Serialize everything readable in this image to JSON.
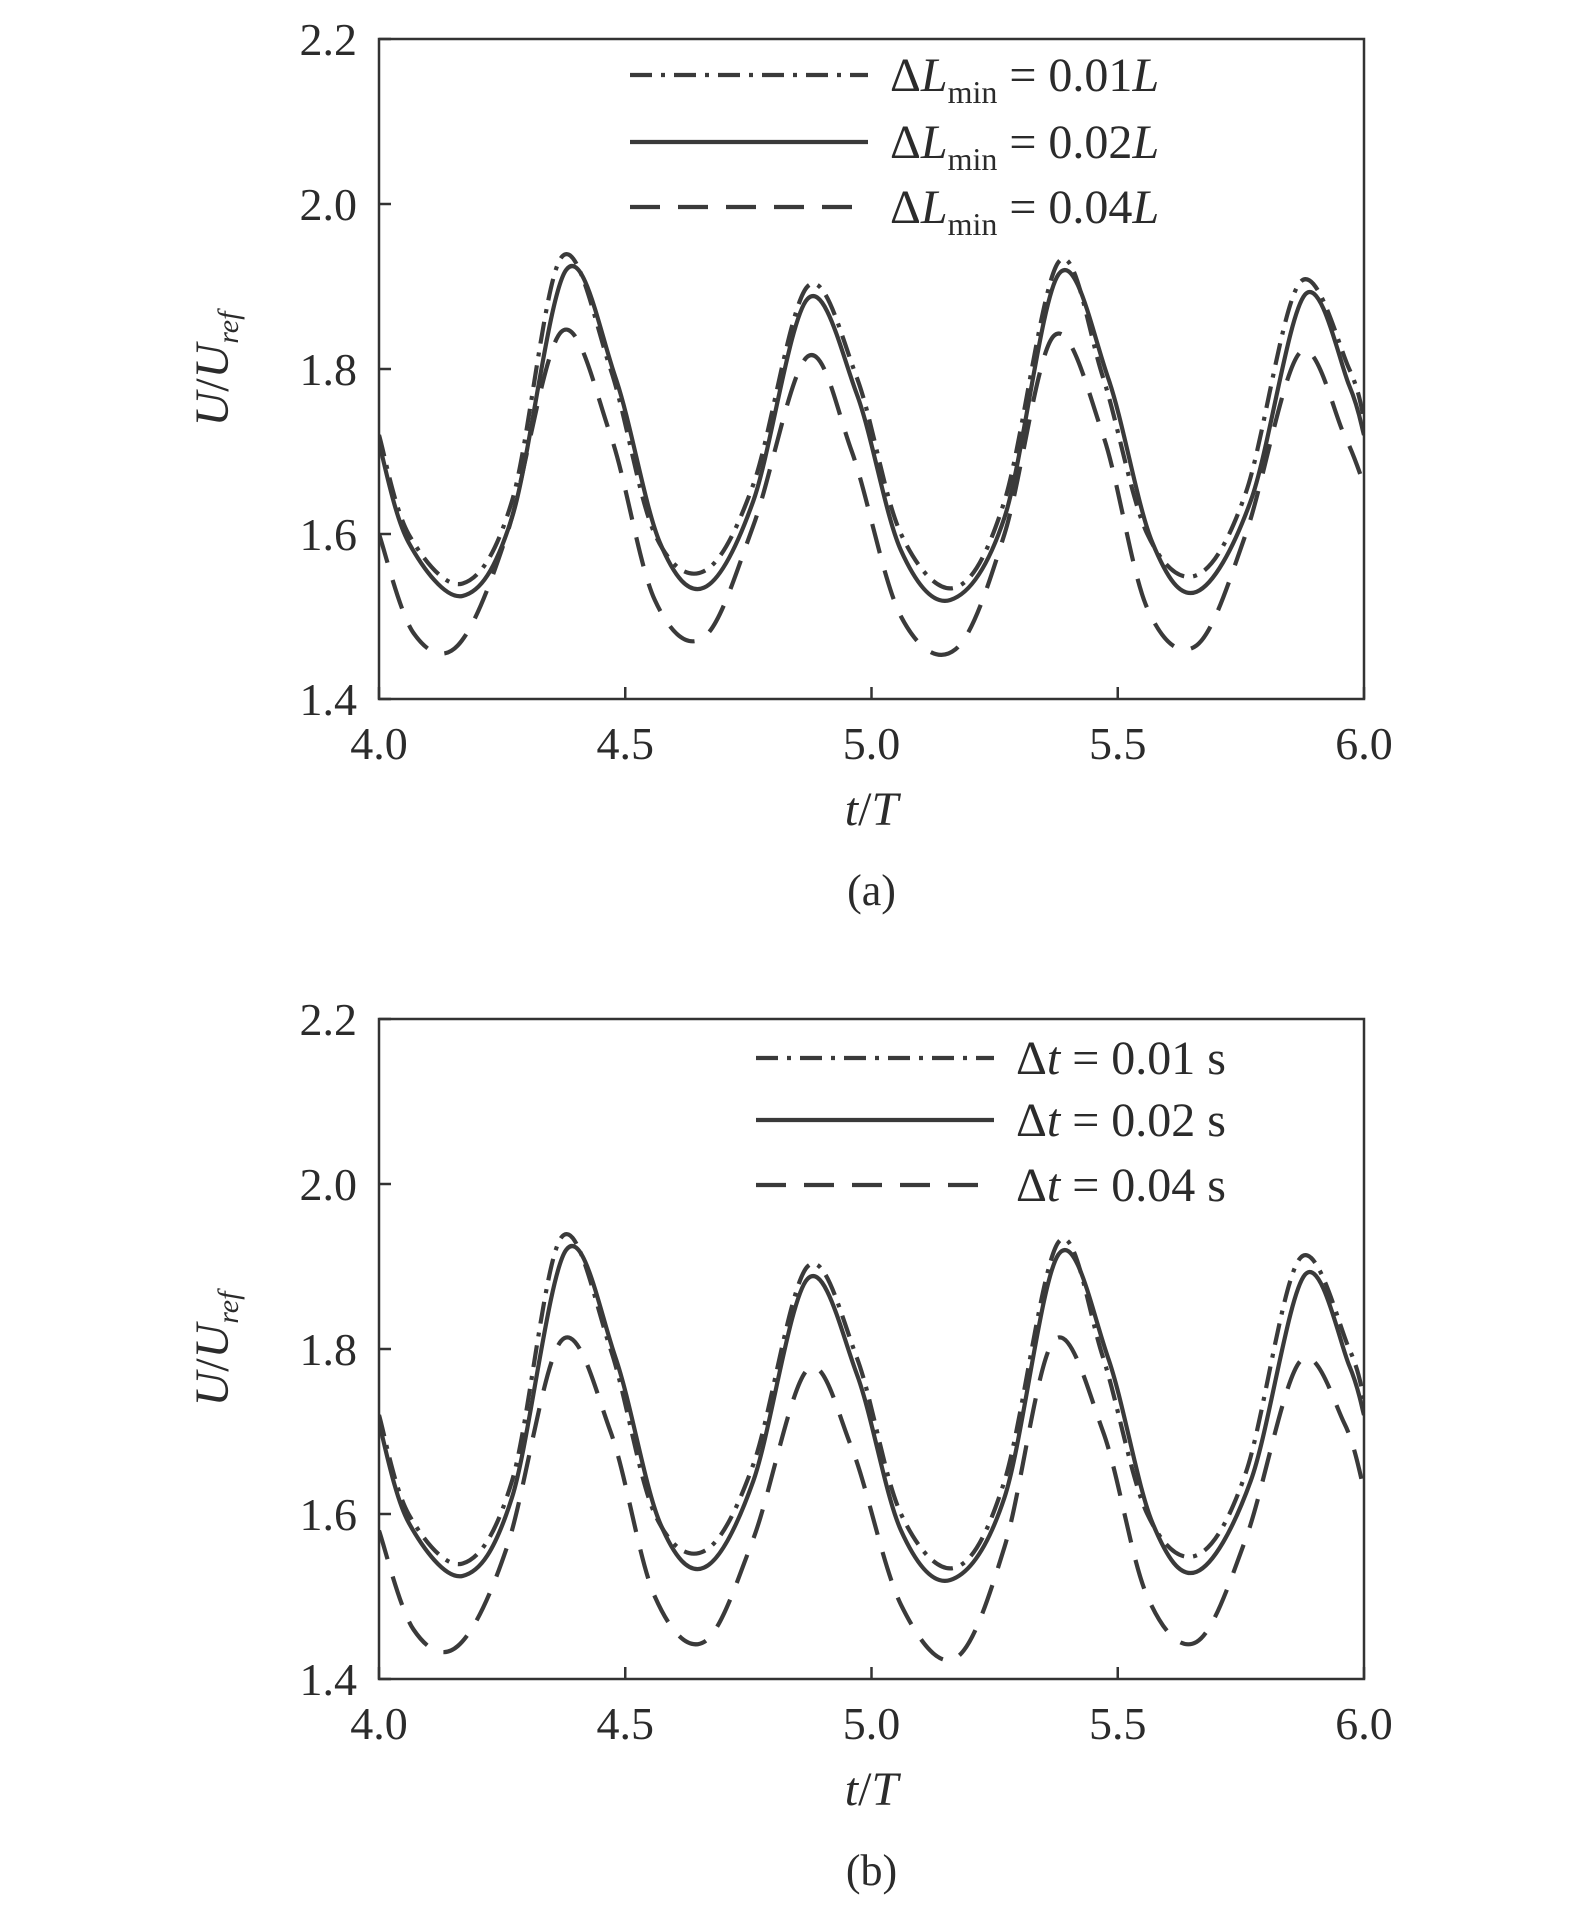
{
  "chart_data": [
    {
      "type": "line",
      "caption": "(a)",
      "xlabel": "t/T",
      "ylabel": "U/U_ref",
      "xlim": [
        4.0,
        6.0
      ],
      "ylim": [
        1.4,
        2.2
      ],
      "xticks": [
        "4.0",
        "4.5",
        "5.0",
        "5.5",
        "6.0"
      ],
      "yticks": [
        "1.4",
        "1.6",
        "1.8",
        "2.0",
        "2.2"
      ],
      "grid": false,
      "legend_position": "top-right",
      "series": [
        {
          "name": "ΔL_min = 0.01L",
          "style": "dashdot",
          "legend": {
            "prefix": "ΔL",
            "sub": "min",
            "value": " = 0.01",
            "unit": "L"
          },
          "x": [
            4.0,
            4.06,
            4.17,
            4.27,
            4.37,
            4.47,
            4.56,
            4.66,
            4.76,
            4.87,
            4.97,
            5.06,
            5.17,
            5.27,
            5.38,
            5.47,
            5.56,
            5.66,
            5.76,
            5.87,
            5.97,
            6.0
          ],
          "y": [
            1.72,
            1.6,
            1.54,
            1.64,
            1.935,
            1.8,
            1.6,
            1.555,
            1.66,
            1.9,
            1.79,
            1.6,
            1.535,
            1.64,
            1.93,
            1.79,
            1.6,
            1.55,
            1.65,
            1.905,
            1.8,
            1.74
          ]
        },
        {
          "name": "ΔL_min = 0.02L",
          "style": "solid",
          "legend": {
            "prefix": "ΔL",
            "sub": "min",
            "value": " = 0.02",
            "unit": "L"
          },
          "x": [
            4.0,
            4.06,
            4.17,
            4.27,
            4.38,
            4.48,
            4.57,
            4.66,
            4.76,
            4.87,
            4.97,
            5.06,
            5.16,
            5.27,
            5.38,
            5.48,
            5.57,
            5.66,
            5.77,
            5.88,
            5.97,
            6.0
          ],
          "y": [
            1.71,
            1.59,
            1.525,
            1.62,
            1.92,
            1.79,
            1.59,
            1.535,
            1.64,
            1.885,
            1.77,
            1.58,
            1.52,
            1.62,
            1.915,
            1.79,
            1.59,
            1.53,
            1.64,
            1.89,
            1.78,
            1.72
          ]
        },
        {
          "name": "ΔL_min = 0.04L",
          "style": "dashed",
          "legend": {
            "prefix": "ΔL",
            "sub": "min",
            "value": " = 0.04",
            "unit": "L"
          },
          "x": [
            4.0,
            4.07,
            4.16,
            4.26,
            4.37,
            4.47,
            4.56,
            4.66,
            4.76,
            4.87,
            4.96,
            5.06,
            5.17,
            5.27,
            5.37,
            5.47,
            5.56,
            5.66,
            5.76,
            5.87,
            5.96,
            6.0
          ],
          "y": [
            1.6,
            1.48,
            1.465,
            1.6,
            1.845,
            1.72,
            1.52,
            1.475,
            1.61,
            1.815,
            1.7,
            1.5,
            1.46,
            1.6,
            1.84,
            1.72,
            1.51,
            1.465,
            1.6,
            1.82,
            1.72,
            1.66
          ]
        }
      ]
    },
    {
      "type": "line",
      "caption": "(b)",
      "xlabel": "t/T",
      "ylabel": "U/U_ref",
      "xlim": [
        4.0,
        6.0
      ],
      "ylim": [
        1.4,
        2.2
      ],
      "xticks": [
        "4.0",
        "4.5",
        "5.0",
        "5.5",
        "6.0"
      ],
      "yticks": [
        "1.4",
        "1.6",
        "1.8",
        "2.0",
        "2.2"
      ],
      "grid": false,
      "legend_position": "top-right",
      "series": [
        {
          "name": "Δt = 0.01 s",
          "style": "dashdot",
          "legend": {
            "prefix": "Δ",
            "sub": "",
            "italic": "t",
            "value": " = 0.01 s",
            "unit": ""
          },
          "x": [
            4.0,
            4.06,
            4.17,
            4.27,
            4.37,
            4.47,
            4.56,
            4.66,
            4.76,
            4.87,
            4.97,
            5.06,
            5.17,
            5.27,
            5.38,
            5.47,
            5.56,
            5.66,
            5.76,
            5.87,
            5.97,
            6.0
          ],
          "y": [
            1.72,
            1.6,
            1.54,
            1.64,
            1.935,
            1.8,
            1.6,
            1.555,
            1.66,
            1.9,
            1.79,
            1.6,
            1.535,
            1.64,
            1.93,
            1.79,
            1.6,
            1.55,
            1.65,
            1.91,
            1.8,
            1.74
          ]
        },
        {
          "name": "Δt = 0.02 s",
          "style": "solid",
          "legend": {
            "prefix": "Δ",
            "sub": "",
            "italic": "t",
            "value": " = 0.02 s",
            "unit": ""
          },
          "x": [
            4.0,
            4.06,
            4.17,
            4.27,
            4.38,
            4.48,
            4.57,
            4.66,
            4.76,
            4.87,
            4.97,
            5.06,
            5.16,
            5.27,
            5.38,
            5.48,
            5.57,
            5.66,
            5.77,
            5.88,
            5.97,
            6.0
          ],
          "y": [
            1.71,
            1.59,
            1.525,
            1.62,
            1.92,
            1.79,
            1.59,
            1.535,
            1.64,
            1.885,
            1.77,
            1.58,
            1.52,
            1.62,
            1.915,
            1.79,
            1.59,
            1.53,
            1.64,
            1.89,
            1.78,
            1.72
          ]
        },
        {
          "name": "Δt = 0.04 s",
          "style": "dashed",
          "legend": {
            "prefix": "Δ",
            "sub": "",
            "italic": "t",
            "value": " = 0.04 s",
            "unit": ""
          },
          "x": [
            4.0,
            4.07,
            4.16,
            4.26,
            4.37,
            4.47,
            4.56,
            4.66,
            4.76,
            4.87,
            4.96,
            5.06,
            5.17,
            5.27,
            5.37,
            5.47,
            5.56,
            5.66,
            5.76,
            5.87,
            5.96,
            6.0
          ],
          "y": [
            1.58,
            1.46,
            1.44,
            1.56,
            1.81,
            1.7,
            1.5,
            1.445,
            1.57,
            1.775,
            1.68,
            1.49,
            1.425,
            1.56,
            1.81,
            1.7,
            1.5,
            1.445,
            1.57,
            1.785,
            1.71,
            1.63
          ]
        }
      ]
    }
  ]
}
